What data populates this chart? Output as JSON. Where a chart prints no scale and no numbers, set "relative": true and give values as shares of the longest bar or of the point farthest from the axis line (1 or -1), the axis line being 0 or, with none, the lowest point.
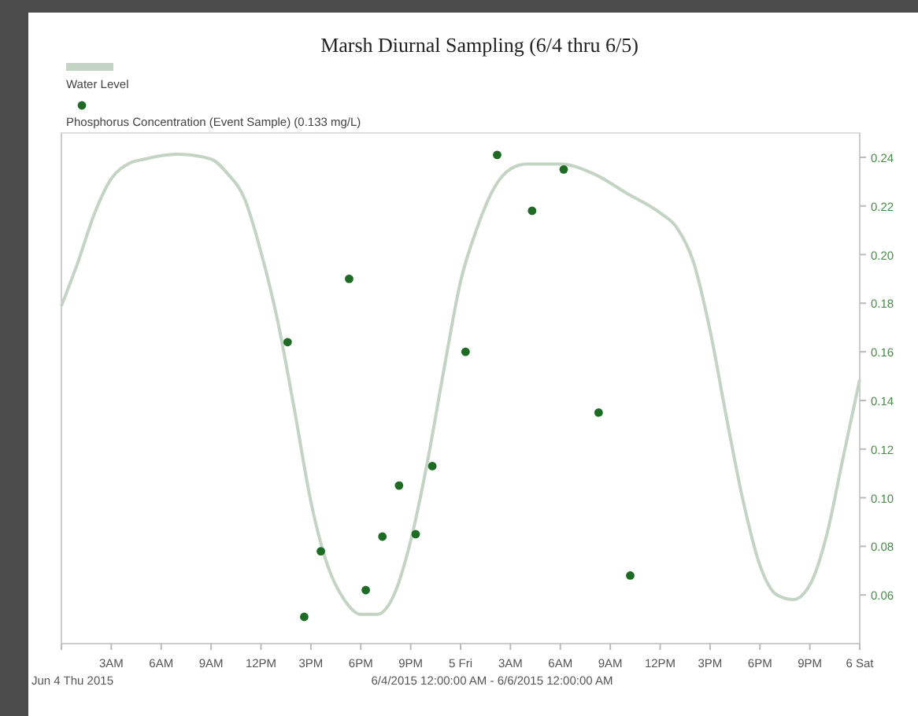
{
  "chart_data": {
    "type": "line",
    "title": "Marsh Diurnal Sampling (6/4 thru 6/5)",
    "xlabel": "6/4/2015 12:00:00 AM - 6/6/2015 12:00:00 AM",
    "annotations": [
      "Jun 4 Thu 2015"
    ],
    "relative": true,
    "legend": "top left",
    "xlim": [
      "2015-06-04T00:00",
      "2015-06-06T00:00"
    ],
    "xticks": [
      {
        "value": "2015-06-04T00:00",
        "label": null
      },
      {
        "value": "2015-06-04T03:00",
        "label": "3AM"
      },
      {
        "value": "2015-06-04T06:00",
        "label": "6AM"
      },
      {
        "value": "2015-06-04T09:00",
        "label": "9AM"
      },
      {
        "value": "2015-06-04T12:00",
        "label": "12PM"
      },
      {
        "value": "2015-06-04T15:00",
        "label": "3PM"
      },
      {
        "value": "2015-06-04T18:00",
        "label": "6PM"
      },
      {
        "value": "2015-06-04T21:00",
        "label": "9PM"
      },
      {
        "value": "2015-06-05T00:00",
        "label": "5 Fri"
      },
      {
        "value": "2015-06-05T03:00",
        "label": "3AM"
      },
      {
        "value": "2015-06-05T06:00",
        "label": "6AM"
      },
      {
        "value": "2015-06-05T09:00",
        "label": "9AM"
      },
      {
        "value": "2015-06-05T12:00",
        "label": "12PM"
      },
      {
        "value": "2015-06-05T15:00",
        "label": "3PM"
      },
      {
        "value": "2015-06-05T18:00",
        "label": "6PM"
      },
      {
        "value": "2015-06-05T21:00",
        "label": "9PM"
      },
      {
        "value": "2015-06-06T00:00",
        "label": "6 Sat"
      }
    ],
    "y2lim": [
      0.04,
      0.25
    ],
    "y2ticks": [
      0.06,
      0.08,
      {
        "value": 0.1,
        "label": "0.10"
      },
      0.12,
      0.14,
      0.16,
      0.18,
      {
        "value": 0.2,
        "label": "0.20"
      },
      0.22,
      0.24
    ],
    "series": [
      {
        "name": "Water Level",
        "color": "#c4d4c4",
        "x": [
          "2015-06-04T00:00",
          "2015-06-04T01:00",
          "2015-06-04T02:00",
          "2015-06-04T03:00",
          "2015-06-04T04:00",
          "2015-06-04T05:00",
          "2015-06-04T07:00",
          "2015-06-04T09:00",
          "2015-06-04T10:00",
          "2015-06-04T11:00",
          "2015-06-04T12:00",
          "2015-06-04T13:00",
          "2015-06-04T14:00",
          "2015-06-04T15:00",
          "2015-06-04T16:00",
          "2015-06-04T17:00",
          "2015-06-04T18:00",
          "2015-06-04T19:00",
          "2015-06-04T20:00",
          "2015-06-04T21:00",
          "2015-06-04T22:00",
          "2015-06-04T23:00",
          "2015-06-05T00:00",
          "2015-06-05T01:00",
          "2015-06-05T02:00",
          "2015-06-05T03:00",
          "2015-06-05T04:00",
          "2015-06-05T06:00",
          "2015-06-05T08:00",
          "2015-06-05T10:00",
          "2015-06-05T12:00",
          "2015-06-05T13:00",
          "2015-06-05T14:00",
          "2015-06-05T15:00",
          "2015-06-05T16:00",
          "2015-06-05T17:00",
          "2015-06-05T18:00",
          "2015-06-05T19:00",
          "2015-06-05T20:00",
          "2015-06-05T21:00",
          "2015-06-05T22:00",
          "2015-06-05T23:00",
          "2015-06-06T00:00"
        ],
        "values": [
          0.69,
          0.78,
          0.88,
          0.95,
          0.98,
          0.99,
          1,
          0.99,
          0.96,
          0.91,
          0.8,
          0.66,
          0.48,
          0.29,
          0.16,
          0.09,
          0.06,
          0.06,
          0.1,
          0.21,
          0.37,
          0.56,
          0.74,
          0.85,
          0.93,
          0.97,
          0.98,
          0.98,
          0.96,
          0.92,
          0.88,
          0.85,
          0.78,
          0.64,
          0.46,
          0.29,
          0.16,
          0.1,
          0.09,
          0.12,
          0.22,
          0.38,
          0.54
        ]
      },
      {
        "name": "Phosphorus Concentration (Event Sample) (0.133 mg/L)",
        "type": "scatter",
        "axis": "y2",
        "color": "#1d6b24",
        "marker": "circle",
        "x": [
          "2015-06-04T13:36",
          "2015-06-04T14:36",
          "2015-06-04T15:36",
          "2015-06-04T17:18",
          "2015-06-04T18:18",
          "2015-06-04T19:18",
          "2015-06-04T20:18",
          "2015-06-04T21:18",
          "2015-06-04T22:18",
          "2015-06-05T00:18",
          "2015-06-05T02:12",
          "2015-06-05T04:18",
          "2015-06-05T06:12",
          "2015-06-05T08:18",
          "2015-06-05T10:12"
        ],
        "values": [
          0.164,
          0.051,
          0.078,
          0.19,
          0.062,
          0.084,
          0.105,
          0.085,
          0.113,
          0.16,
          0.241,
          0.218,
          0.235,
          0.135,
          0.068
        ]
      }
    ]
  }
}
